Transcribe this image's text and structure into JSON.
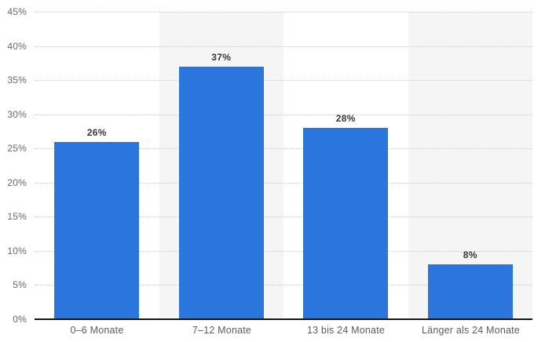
{
  "chart_data": {
    "type": "bar",
    "title": "",
    "xlabel": "",
    "ylabel": "",
    "categories": [
      "0–6 Monate",
      "7–12 Monate",
      "13 bis 24 Monate",
      "Länger als 24 Monate"
    ],
    "values": [
      26,
      37,
      28,
      8
    ],
    "value_labels": [
      "26%",
      "37%",
      "28%",
      "8%"
    ],
    "ylim": [
      0,
      45
    ],
    "ytick_step": 5,
    "ytick_labels": [
      "0%",
      "5%",
      "10%",
      "15%",
      "20%",
      "25%",
      "30%",
      "35%",
      "40%",
      "45%"
    ],
    "grid": "horizontal-dotted",
    "legend": "none",
    "column_stripes": "alternating, stripes behind columns 2 and 4",
    "colors": {
      "bar": "#2a76dd",
      "column_stripe": "#f5f5f6",
      "gridline": "#c9c9c9",
      "axis_line": "#161618",
      "value_label": "#37373b",
      "tick_label": "#66676b",
      "category_label": "#5b5c5f",
      "background": "#ffffff"
    }
  }
}
